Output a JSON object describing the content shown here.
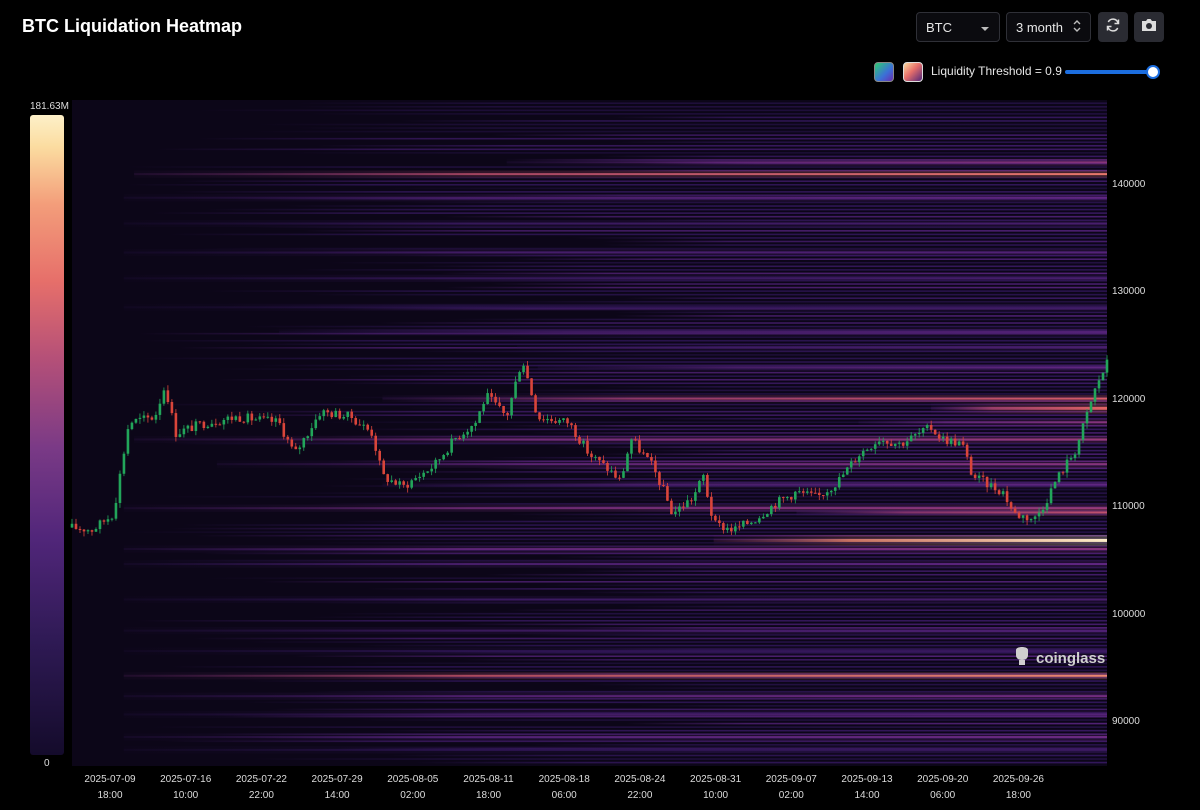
{
  "header": {
    "title": "BTC Liquidation Heatmap",
    "symbol": "BTC",
    "period": "3 month",
    "threshold_label": "Liquidity Threshold = 0.9"
  },
  "colorbar": {
    "max_label": "181.63M",
    "min_label": "0"
  },
  "watermark": "coinglass",
  "colors": {
    "accent": "#1c6ee0",
    "up": "#22a55a",
    "down": "#d9453a"
  },
  "icons": [
    "chevron-down-icon",
    "updown-icon",
    "refresh-icon",
    "camera-icon",
    "coinglass-icon"
  ],
  "chart_data": {
    "type": "heatmap",
    "title": "BTC Liquidation Heatmap",
    "threshold": 0.9,
    "ylim": [
      86000,
      148000
    ],
    "y_ticks": [
      {
        "v": 90000,
        "label": "90000"
      },
      {
        "v": 100000,
        "label": "100000"
      },
      {
        "v": 110000,
        "label": "110000"
      },
      {
        "v": 120000,
        "label": "120000"
      },
      {
        "v": 130000,
        "label": "130000"
      },
      {
        "v": 140000,
        "label": "140000"
      }
    ],
    "x_ticks": [
      {
        "d": "2025-07-09",
        "t": "18:00"
      },
      {
        "d": "2025-07-16",
        "t": "10:00"
      },
      {
        "d": "2025-07-22",
        "t": "22:00"
      },
      {
        "d": "2025-07-29",
        "t": "14:00"
      },
      {
        "d": "2025-08-05",
        "t": "02:00"
      },
      {
        "d": "2025-08-11",
        "t": "18:00"
      },
      {
        "d": "2025-08-18",
        "t": "06:00"
      },
      {
        "d": "2025-08-24",
        "t": "22:00"
      },
      {
        "d": "2025-08-31",
        "t": "10:00"
      },
      {
        "d": "2025-09-07",
        "t": "02:00"
      },
      {
        "d": "2025-09-13",
        "t": "14:00"
      },
      {
        "d": "2025-09-20",
        "t": "06:00"
      },
      {
        "d": "2025-09-26",
        "t": "18:00"
      }
    ],
    "price_path": [
      [
        0,
        108200
      ],
      [
        0.02,
        108000
      ],
      [
        0.04,
        109500
      ],
      [
        0.055,
        118000
      ],
      [
        0.08,
        118500
      ],
      [
        0.09,
        121500
      ],
      [
        0.1,
        117000
      ],
      [
        0.13,
        118000
      ],
      [
        0.16,
        118500
      ],
      [
        0.2,
        118000
      ],
      [
        0.215,
        115000
      ],
      [
        0.24,
        119000
      ],
      [
        0.27,
        118500
      ],
      [
        0.29,
        117000
      ],
      [
        0.3,
        113000
      ],
      [
        0.32,
        112000
      ],
      [
        0.35,
        114000
      ],
      [
        0.37,
        116500
      ],
      [
        0.39,
        118000
      ],
      [
        0.4,
        120500
      ],
      [
        0.42,
        118500
      ],
      [
        0.435,
        124000
      ],
      [
        0.45,
        118500
      ],
      [
        0.48,
        118000
      ],
      [
        0.5,
        115000
      ],
      [
        0.52,
        113500
      ],
      [
        0.53,
        112500
      ],
      [
        0.54,
        116500
      ],
      [
        0.56,
        114000
      ],
      [
        0.57,
        112000
      ],
      [
        0.58,
        109500
      ],
      [
        0.6,
        111000
      ],
      [
        0.61,
        113000
      ],
      [
        0.62,
        108500
      ],
      [
        0.64,
        108000
      ],
      [
        0.66,
        109000
      ],
      [
        0.68,
        110500
      ],
      [
        0.7,
        111500
      ],
      [
        0.72,
        111000
      ],
      [
        0.74,
        112500
      ],
      [
        0.76,
        115000
      ],
      [
        0.78,
        116500
      ],
      [
        0.8,
        116000
      ],
      [
        0.82,
        117000
      ],
      [
        0.83,
        117500
      ],
      [
        0.84,
        116500
      ],
      [
        0.86,
        116000
      ],
      [
        0.87,
        113000
      ],
      [
        0.88,
        112500
      ],
      [
        0.9,
        111500
      ],
      [
        0.91,
        109500
      ],
      [
        0.93,
        109000
      ],
      [
        0.94,
        110500
      ],
      [
        0.95,
        112500
      ],
      [
        0.97,
        115500
      ],
      [
        0.98,
        118500
      ],
      [
        0.99,
        121500
      ],
      [
        1,
        123500
      ]
    ],
    "bands": [
      {
        "p": 141100,
        "i": 0.82,
        "x0": 0.06,
        "w": 2
      },
      {
        "p": 142200,
        "i": 0.55,
        "x0": 0.42,
        "w": 2
      },
      {
        "p": 138900,
        "i": 0.45,
        "x0": 0.05,
        "w": 2
      },
      {
        "p": 136500,
        "i": 0.35,
        "x0": 0.05,
        "w": 2
      },
      {
        "p": 133800,
        "i": 0.4,
        "x0": 0.05,
        "w": 2
      },
      {
        "p": 131400,
        "i": 0.35,
        "x0": 0.05,
        "w": 2
      },
      {
        "p": 128700,
        "i": 0.3,
        "x0": 0.05,
        "w": 2
      },
      {
        "p": 126400,
        "i": 0.4,
        "x0": 0.2,
        "w": 2
      },
      {
        "p": 125000,
        "i": 0.35,
        "x0": 0.43,
        "w": 2
      },
      {
        "p": 123100,
        "i": 0.45,
        "x0": 0.45,
        "w": 2
      },
      {
        "p": 120200,
        "i": 0.75,
        "x0": 0.3,
        "w": 2
      },
      {
        "p": 119300,
        "i": 0.78,
        "x0": 0.83,
        "w": 3
      },
      {
        "p": 118000,
        "i": 0.55,
        "x0": 0.76,
        "w": 2
      },
      {
        "p": 116400,
        "i": 0.6,
        "x0": 0.06,
        "w": 2
      },
      {
        "p": 114100,
        "i": 0.55,
        "x0": 0.14,
        "w": 2
      },
      {
        "p": 112200,
        "i": 0.45,
        "x0": 0.3,
        "w": 2
      },
      {
        "p": 110000,
        "i": 0.6,
        "x0": 0.05,
        "w": 2
      },
      {
        "p": 109600,
        "i": 0.7,
        "x0": 0.7,
        "w": 2
      },
      {
        "p": 107000,
        "i": 1.0,
        "x0": 0.62,
        "w": 3
      },
      {
        "p": 106200,
        "i": 0.55,
        "x0": 0.05,
        "w": 2
      },
      {
        "p": 104800,
        "i": 0.45,
        "x0": 0.05,
        "w": 2
      },
      {
        "p": 101500,
        "i": 0.35,
        "x0": 0.05,
        "w": 2
      },
      {
        "p": 98600,
        "i": 0.38,
        "x0": 0.05,
        "w": 2
      },
      {
        "p": 96700,
        "i": 0.3,
        "x0": 0.05,
        "w": 2
      },
      {
        "p": 94400,
        "i": 0.85,
        "x0": 0.05,
        "w": 2
      },
      {
        "p": 92500,
        "i": 0.5,
        "x0": 0.05,
        "w": 2
      },
      {
        "p": 90800,
        "i": 0.4,
        "x0": 0.05,
        "w": 2
      },
      {
        "p": 88700,
        "i": 0.48,
        "x0": 0.05,
        "w": 2
      },
      {
        "p": 87500,
        "i": 0.3,
        "x0": 0.05,
        "w": 2
      }
    ]
  }
}
